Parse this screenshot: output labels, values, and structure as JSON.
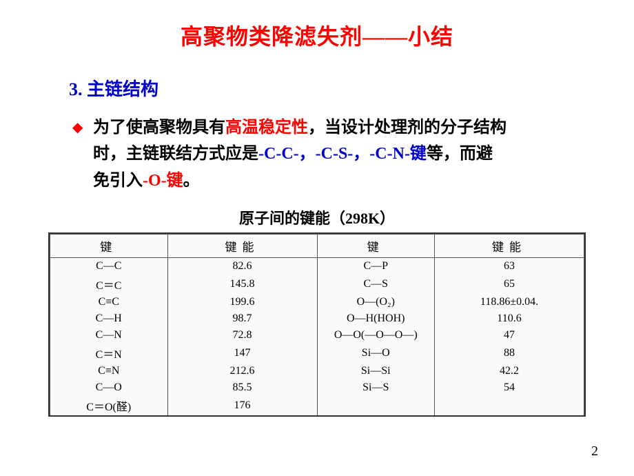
{
  "title": {
    "prefix": "高聚物类降滤失剂",
    "suffix": "——小结"
  },
  "subtitle": "3. 主链结构",
  "bullet": {
    "p1_black1": "为了使高聚物具有",
    "p1_red1": "高温稳定性",
    "p1_black2": "，当设计处理剂的分子结构",
    "p2_black1": "时，主链联结方式应是",
    "p2_blue1": "-C-C-，-C-S-，-C-N-键",
    "p2_black2": "等，而避",
    "p3_black1": "免引入",
    "p3_red1": "-O-键",
    "p3_black2": "。"
  },
  "table_caption": "原子间的键能（298K）",
  "headers": {
    "h1": "键",
    "h2": "键能",
    "h3": "键",
    "h4": "键能"
  },
  "rows": [
    {
      "c1": "C—C",
      "c2": "82.6",
      "c3": "C—P",
      "c4": "63"
    },
    {
      "c1": "C＝C",
      "c2": "145.8",
      "c3": "C—S",
      "c4": "65"
    },
    {
      "c1": "C≡C",
      "c2": "199.6",
      "c3": "O—(O₂)",
      "c4": "118.86±0.04."
    },
    {
      "c1": "C—H",
      "c2": "98.7",
      "c3": "O—H(HOH)",
      "c4": "110.6"
    },
    {
      "c1": "C—N",
      "c2": "72.8",
      "c3": "O—O(—O—O—)",
      "c4": "47"
    },
    {
      "c1": "C＝N",
      "c2": "147",
      "c3": "Si—O",
      "c4": "88"
    },
    {
      "c1": "C≡N",
      "c2": "212.6",
      "c3": "Si—Si",
      "c4": "42.2"
    },
    {
      "c1": "C—O",
      "c2": "85.5",
      "c3": "Si—S",
      "c4": "54"
    },
    {
      "c1": "C＝O(醛)",
      "c2": "176",
      "c3": "",
      "c4": ""
    }
  ],
  "page_number": "2"
}
